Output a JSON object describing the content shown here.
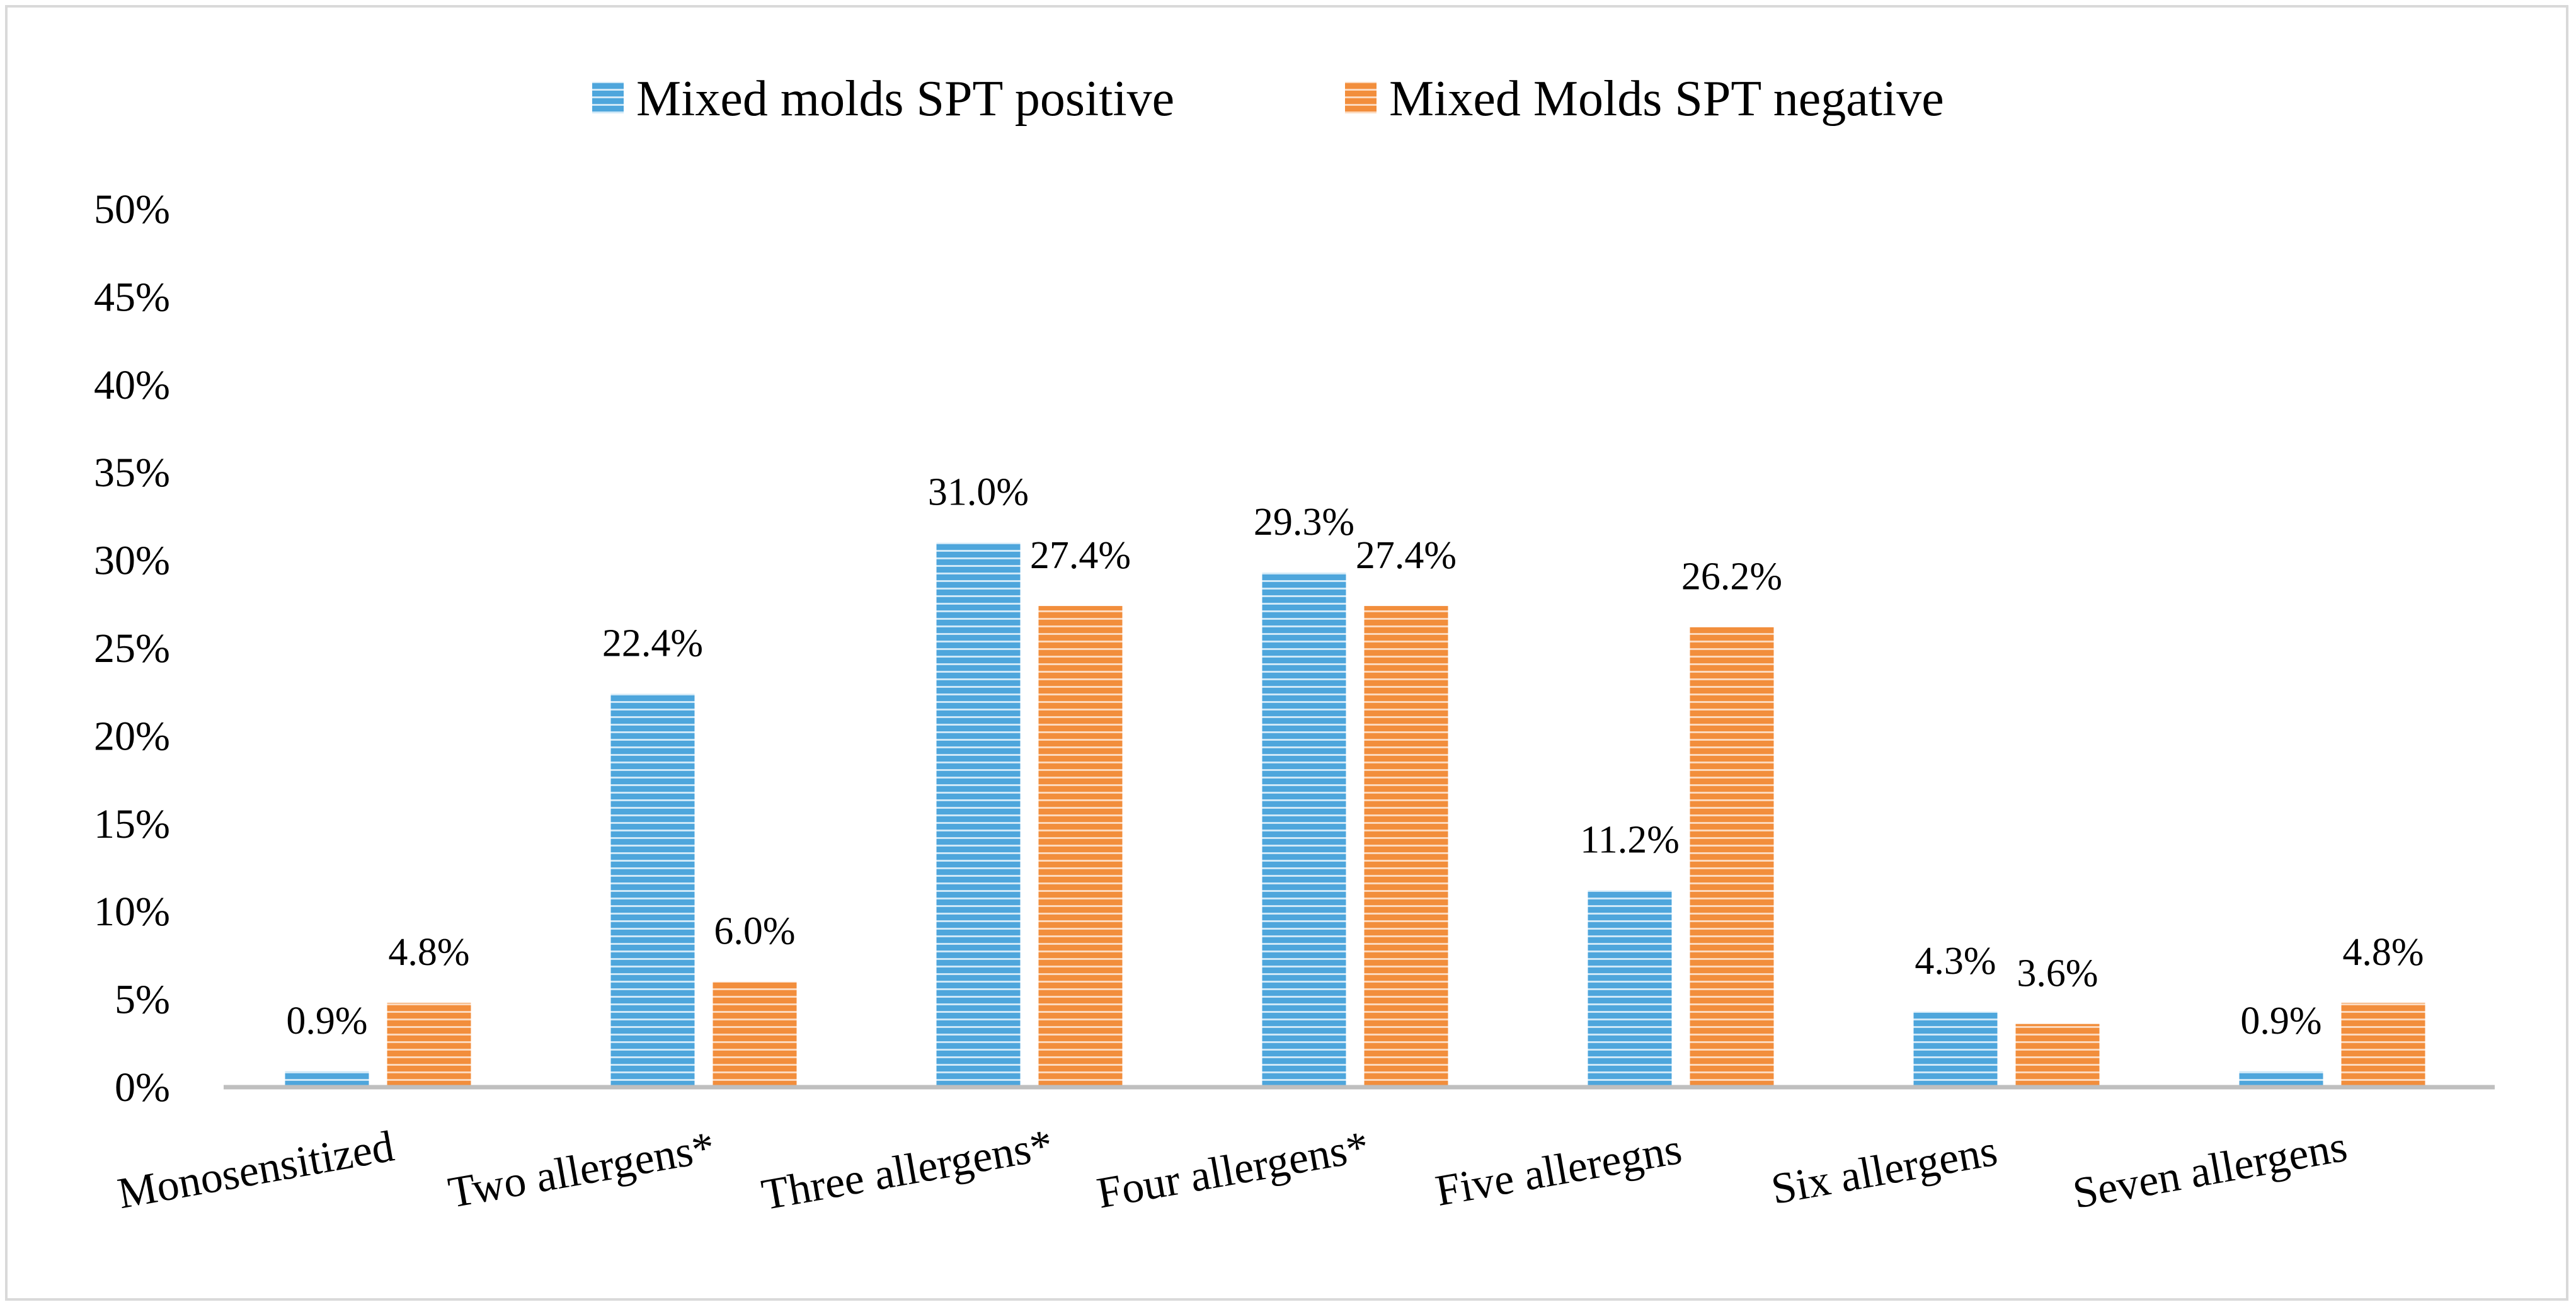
{
  "chart_data": {
    "type": "bar",
    "title": "",
    "xlabel": "",
    "ylabel": "",
    "ylim": [
      0,
      50
    ],
    "yticks": [
      "0%",
      "5%",
      "10%",
      "15%",
      "20%",
      "25%",
      "30%",
      "35%",
      "40%",
      "45%",
      "50%"
    ],
    "legend_position": "top-center",
    "categories": [
      "Monosensitized",
      "Two allergens*",
      "Three allergens*",
      "Four allergens*",
      "Five alleregns",
      "Six allergens",
      "Seven allergens"
    ],
    "series": [
      {
        "name": "Mixed molds SPT positive",
        "color": "#4ea6dc",
        "values": [
          0.9,
          22.4,
          31.0,
          29.3,
          11.2,
          4.3,
          0.9
        ],
        "labels": [
          "0.9%",
          "22.4%",
          "31.0%",
          "29.3%",
          "11.2%",
          "4.3%",
          "0.9%"
        ]
      },
      {
        "name": "Mixed Molds SPT negative",
        "color": "#f28e3c",
        "values": [
          4.8,
          6.0,
          27.4,
          27.4,
          26.2,
          3.6,
          4.8
        ],
        "labels": [
          "4.8%",
          "6.0%",
          "27.4%",
          "27.4%",
          "26.2%",
          "3.6%",
          "4.8%"
        ]
      }
    ]
  }
}
